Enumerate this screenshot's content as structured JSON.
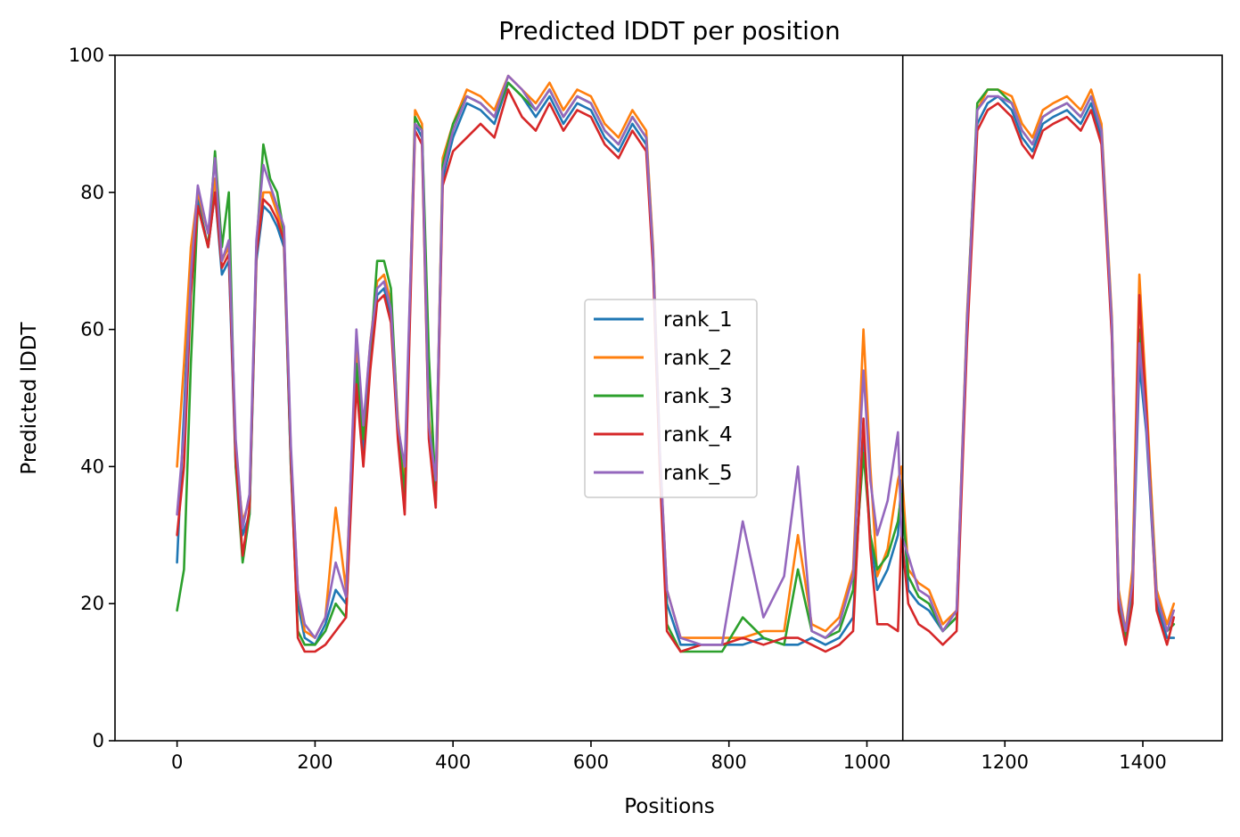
{
  "chart_data": {
    "type": "line",
    "title": "Predicted lDDT per position",
    "xlabel": "Positions",
    "ylabel": "Predicted lDDT",
    "xlim": [
      -90,
      1515
    ],
    "ylim": [
      0,
      100
    ],
    "xticks": [
      0,
      200,
      400,
      600,
      800,
      1000,
      1200,
      1400
    ],
    "yticks": [
      0,
      20,
      40,
      60,
      80,
      100
    ],
    "grid": false,
    "legend_position": "center",
    "chain_break": 1052,
    "series": [
      {
        "name": "rank_1",
        "color": "#1f77b4",
        "x": [
          0,
          10,
          20,
          30,
          45,
          55,
          65,
          75,
          85,
          95,
          105,
          115,
          125,
          135,
          145,
          155,
          165,
          175,
          185,
          200,
          215,
          230,
          245,
          260,
          270,
          280,
          290,
          300,
          310,
          320,
          330,
          345,
          355,
          365,
          375,
          385,
          400,
          420,
          440,
          460,
          480,
          500,
          520,
          540,
          560,
          580,
          600,
          620,
          640,
          660,
          680,
          690,
          700,
          710,
          730,
          760,
          790,
          820,
          850,
          880,
          900,
          920,
          940,
          960,
          980,
          995,
          1005,
          1015,
          1030,
          1045,
          1050,
          1060,
          1075,
          1090,
          1110,
          1130,
          1145,
          1160,
          1175,
          1190,
          1210,
          1225,
          1240,
          1255,
          1270,
          1290,
          1310,
          1325,
          1340,
          1355,
          1365,
          1375,
          1385,
          1395,
          1405,
          1420,
          1435,
          1445
        ],
        "y": [
          26,
          48,
          70,
          79,
          72,
          80,
          68,
          70,
          40,
          30,
          33,
          70,
          78,
          77,
          75,
          72,
          40,
          20,
          15,
          14,
          17,
          22,
          20,
          55,
          42,
          55,
          65,
          66,
          62,
          45,
          35,
          90,
          88,
          45,
          35,
          82,
          88,
          93,
          92,
          90,
          96,
          94,
          91,
          94,
          90,
          93,
          92,
          88,
          86,
          90,
          87,
          70,
          40,
          20,
          14,
          14,
          14,
          14,
          15,
          14,
          14,
          15,
          14,
          15,
          18,
          45,
          30,
          22,
          25,
          30,
          38,
          22,
          20,
          19,
          16,
          18,
          60,
          90,
          93,
          94,
          92,
          88,
          86,
          90,
          91,
          92,
          90,
          93,
          88,
          60,
          20,
          15,
          22,
          55,
          45,
          20,
          15,
          15
        ]
      },
      {
        "name": "rank_2",
        "color": "#ff7f0e",
        "x": [
          0,
          10,
          20,
          30,
          45,
          55,
          65,
          75,
          85,
          95,
          105,
          115,
          125,
          135,
          145,
          155,
          165,
          175,
          185,
          200,
          215,
          230,
          245,
          260,
          270,
          280,
          290,
          300,
          310,
          320,
          330,
          345,
          355,
          365,
          375,
          385,
          400,
          420,
          440,
          460,
          480,
          500,
          520,
          540,
          560,
          580,
          600,
          620,
          640,
          660,
          680,
          690,
          700,
          710,
          730,
          760,
          790,
          820,
          850,
          880,
          900,
          920,
          940,
          960,
          980,
          995,
          1005,
          1015,
          1030,
          1045,
          1050,
          1060,
          1075,
          1090,
          1110,
          1130,
          1145,
          1160,
          1175,
          1190,
          1210,
          1225,
          1240,
          1255,
          1270,
          1290,
          1310,
          1325,
          1340,
          1355,
          1365,
          1375,
          1385,
          1395,
          1405,
          1420,
          1435,
          1445
        ],
        "y": [
          40,
          55,
          72,
          80,
          74,
          82,
          70,
          72,
          42,
          32,
          35,
          72,
          80,
          80,
          77,
          74,
          42,
          22,
          16,
          15,
          18,
          34,
          22,
          58,
          45,
          58,
          67,
          68,
          64,
          47,
          37,
          92,
          90,
          47,
          37,
          85,
          90,
          95,
          94,
          92,
          97,
          95,
          93,
          96,
          92,
          95,
          94,
          90,
          88,
          92,
          89,
          72,
          42,
          22,
          15,
          15,
          15,
          15,
          16,
          16,
          30,
          17,
          16,
          18,
          25,
          60,
          40,
          24,
          28,
          38,
          40,
          25,
          23,
          22,
          17,
          19,
          62,
          92,
          95,
          95,
          94,
          90,
          88,
          92,
          93,
          94,
          92,
          95,
          90,
          62,
          22,
          16,
          25,
          68,
          50,
          22,
          17,
          20
        ]
      },
      {
        "name": "rank_3",
        "color": "#2ca02c",
        "x": [
          0,
          10,
          20,
          30,
          45,
          55,
          65,
          75,
          85,
          95,
          105,
          115,
          125,
          135,
          145,
          155,
          165,
          175,
          185,
          200,
          215,
          230,
          245,
          260,
          270,
          280,
          290,
          300,
          310,
          320,
          330,
          345,
          355,
          365,
          375,
          385,
          400,
          420,
          440,
          460,
          480,
          500,
          520,
          540,
          560,
          580,
          600,
          620,
          640,
          660,
          680,
          690,
          700,
          710,
          730,
          760,
          790,
          820,
          850,
          880,
          900,
          920,
          940,
          960,
          980,
          995,
          1005,
          1015,
          1030,
          1045,
          1050,
          1060,
          1075,
          1090,
          1110,
          1130,
          1145,
          1160,
          1175,
          1190,
          1210,
          1225,
          1240,
          1255,
          1270,
          1290,
          1310,
          1325,
          1340,
          1355,
          1365,
          1375,
          1385,
          1395,
          1405,
          1420,
          1435,
          1445
        ],
        "y": [
          19,
          25,
          55,
          78,
          72,
          86,
          72,
          80,
          40,
          26,
          33,
          72,
          87,
          82,
          80,
          74,
          40,
          16,
          14,
          14,
          16,
          20,
          18,
          55,
          44,
          56,
          70,
          70,
          66,
          46,
          36,
          91,
          89,
          56,
          36,
          84,
          90,
          94,
          93,
          91,
          96,
          94,
          92,
          95,
          91,
          94,
          93,
          89,
          87,
          91,
          88,
          71,
          41,
          17,
          13,
          13,
          13,
          18,
          15,
          14,
          25,
          16,
          15,
          16,
          22,
          42,
          30,
          25,
          27,
          32,
          36,
          24,
          21,
          20,
          16,
          18,
          61,
          93,
          95,
          95,
          93,
          89,
          87,
          91,
          92,
          93,
          91,
          94,
          89,
          61,
          21,
          15,
          23,
          60,
          47,
          21,
          16,
          17
        ]
      },
      {
        "name": "rank_4",
        "color": "#d62728",
        "x": [
          0,
          10,
          20,
          30,
          45,
          55,
          65,
          75,
          85,
          95,
          105,
          115,
          125,
          135,
          145,
          155,
          165,
          175,
          185,
          200,
          215,
          230,
          245,
          260,
          270,
          280,
          290,
          300,
          310,
          320,
          330,
          345,
          355,
          365,
          375,
          385,
          400,
          420,
          440,
          460,
          480,
          500,
          520,
          540,
          560,
          580,
          600,
          620,
          640,
          660,
          680,
          690,
          700,
          710,
          730,
          760,
          790,
          820,
          850,
          880,
          900,
          920,
          940,
          960,
          980,
          995,
          1005,
          1015,
          1030,
          1045,
          1050,
          1060,
          1075,
          1090,
          1110,
          1130,
          1145,
          1160,
          1175,
          1190,
          1210,
          1225,
          1240,
          1255,
          1270,
          1290,
          1310,
          1325,
          1340,
          1355,
          1365,
          1375,
          1385,
          1395,
          1405,
          1420,
          1435,
          1445
        ],
        "y": [
          30,
          40,
          65,
          78,
          72,
          80,
          69,
          71,
          41,
          27,
          34,
          71,
          79,
          78,
          76,
          73,
          41,
          15,
          13,
          13,
          14,
          16,
          18,
          52,
          40,
          54,
          64,
          65,
          61,
          44,
          33,
          89,
          87,
          44,
          34,
          81,
          86,
          88,
          90,
          88,
          95,
          91,
          89,
          93,
          89,
          92,
          91,
          87,
          85,
          89,
          86,
          69,
          39,
          16,
          13,
          14,
          14,
          15,
          14,
          15,
          15,
          14,
          13,
          14,
          16,
          47,
          28,
          17,
          17,
          16,
          30,
          20,
          17,
          16,
          14,
          16,
          58,
          89,
          92,
          93,
          91,
          87,
          85,
          89,
          90,
          91,
          89,
          92,
          87,
          59,
          19,
          14,
          20,
          65,
          48,
          19,
          14,
          18
        ]
      },
      {
        "name": "rank_5",
        "color": "#9467bd",
        "x": [
          0,
          10,
          20,
          30,
          45,
          55,
          65,
          75,
          85,
          95,
          105,
          115,
          125,
          135,
          145,
          155,
          165,
          175,
          185,
          200,
          215,
          230,
          245,
          260,
          270,
          280,
          290,
          300,
          310,
          320,
          330,
          345,
          355,
          365,
          375,
          385,
          400,
          420,
          440,
          460,
          480,
          500,
          520,
          540,
          560,
          580,
          600,
          620,
          640,
          660,
          680,
          690,
          700,
          710,
          730,
          760,
          790,
          820,
          850,
          880,
          900,
          920,
          940,
          960,
          980,
          995,
          1005,
          1015,
          1030,
          1045,
          1050,
          1060,
          1075,
          1090,
          1110,
          1130,
          1145,
          1160,
          1175,
          1190,
          1210,
          1225,
          1240,
          1255,
          1270,
          1290,
          1310,
          1325,
          1340,
          1355,
          1365,
          1375,
          1385,
          1395,
          1405,
          1420,
          1435,
          1445
        ],
        "y": [
          33,
          45,
          68,
          81,
          74,
          85,
          70,
          73,
          44,
          31,
          36,
          73,
          84,
          81,
          78,
          75,
          43,
          22,
          17,
          15,
          18,
          26,
          21,
          60,
          46,
          58,
          66,
          67,
          63,
          46,
          40,
          90,
          89,
          46,
          38,
          83,
          89,
          94,
          93,
          91,
          97,
          95,
          92,
          95,
          91,
          94,
          93,
          89,
          87,
          91,
          88,
          71,
          42,
          22,
          15,
          14,
          14,
          32,
          18,
          24,
          40,
          16,
          15,
          17,
          24,
          54,
          38,
          30,
          35,
          45,
          30,
          27,
          22,
          21,
          16,
          19,
          61,
          92,
          94,
          94,
          93,
          89,
          87,
          91,
          92,
          93,
          91,
          94,
          89,
          61,
          21,
          16,
          23,
          58,
          46,
          21,
          16,
          19
        ]
      }
    ]
  }
}
